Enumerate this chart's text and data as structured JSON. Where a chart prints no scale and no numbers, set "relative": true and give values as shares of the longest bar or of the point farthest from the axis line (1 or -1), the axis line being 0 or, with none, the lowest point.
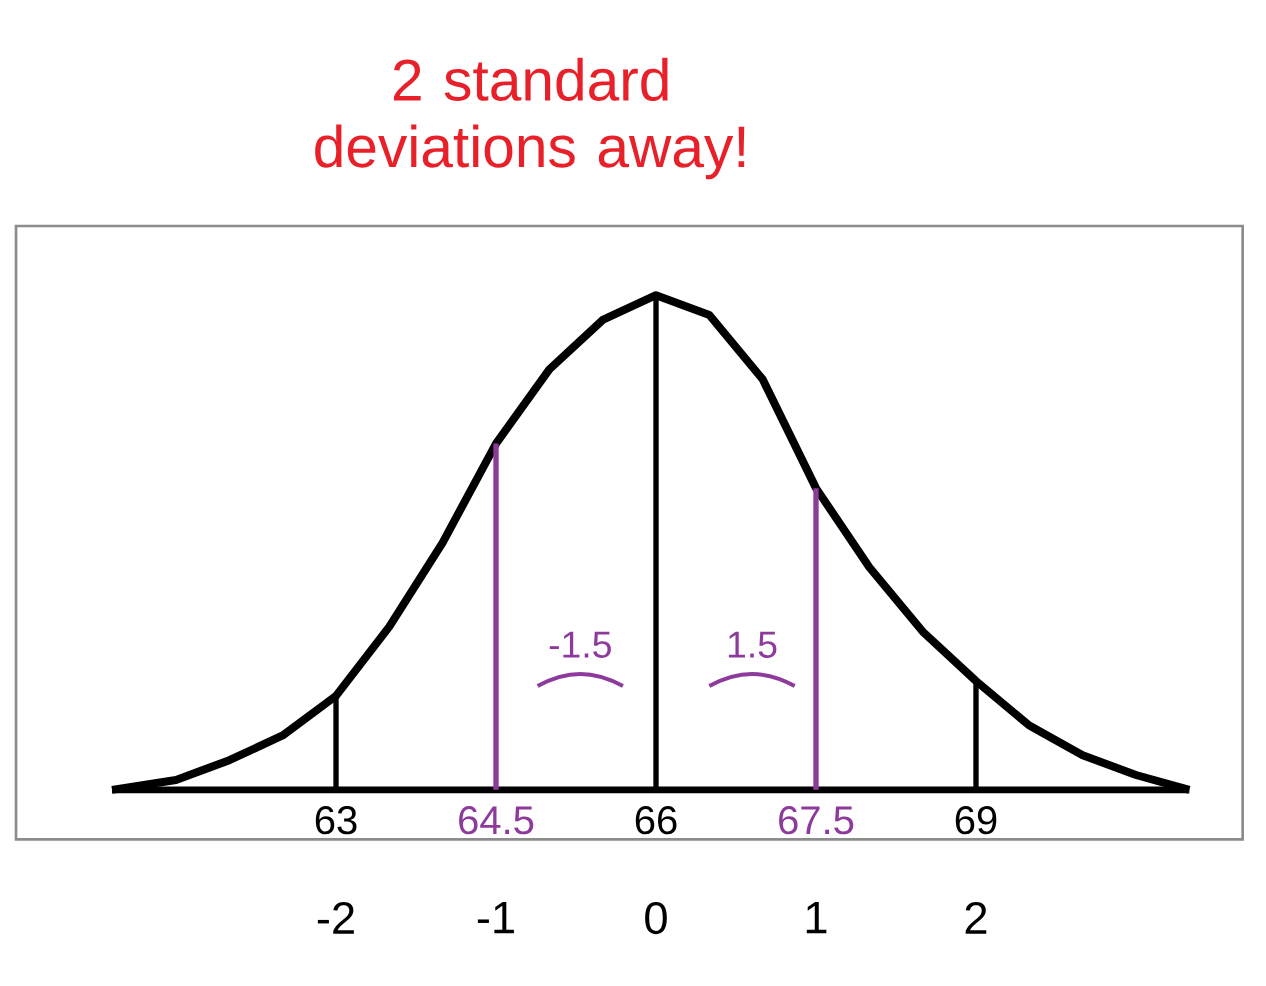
{
  "chart_data": {
    "type": "line",
    "title": "2 standard deviations away!",
    "relative": true,
    "xlim": [
      60,
      71.5
    ],
    "xticks": [
      63,
      64.5,
      66,
      67.5,
      69
    ],
    "x2lim": [
      -4,
      3.667
    ],
    "x2ticks": [
      -2,
      -1,
      0,
      1,
      2
    ],
    "annotations": [
      "-1.5",
      "1.5"
    ],
    "series": [
      {
        "color": "#000000",
        "x": [
          60.9,
          61.5,
          62,
          62.5,
          63,
          63.5,
          64,
          64.5,
          65,
          65.5,
          66,
          66.5,
          67,
          67.5,
          68,
          68.5,
          69,
          69.5,
          70,
          70.5,
          71
        ],
        "values": [
          0.0,
          0.02,
          0.06,
          0.11,
          0.19,
          0.33,
          0.5,
          0.7,
          0.85,
          0.95,
          1.0,
          0.96,
          0.83,
          0.61,
          0.45,
          0.32,
          0.22,
          0.13,
          0.07,
          0.03,
          0.0
        ]
      },
      {
        "color": "#000000",
        "x": [
          63,
          63
        ],
        "values": [
          0,
          0.19
        ]
      },
      {
        "color": "#8e3a9d",
        "x": [
          64.5,
          64.5
        ],
        "values": [
          0,
          0.7
        ]
      },
      {
        "color": "#000000",
        "x": [
          66,
          66
        ],
        "values": [
          0,
          1.0
        ]
      },
      {
        "color": "#8e3a9d",
        "x": [
          67.5,
          67.5
        ],
        "values": [
          0,
          0.61
        ]
      },
      {
        "color": "#000000",
        "x": [
          69,
          69
        ],
        "values": [
          0,
          0.22
        ]
      }
    ]
  }
}
